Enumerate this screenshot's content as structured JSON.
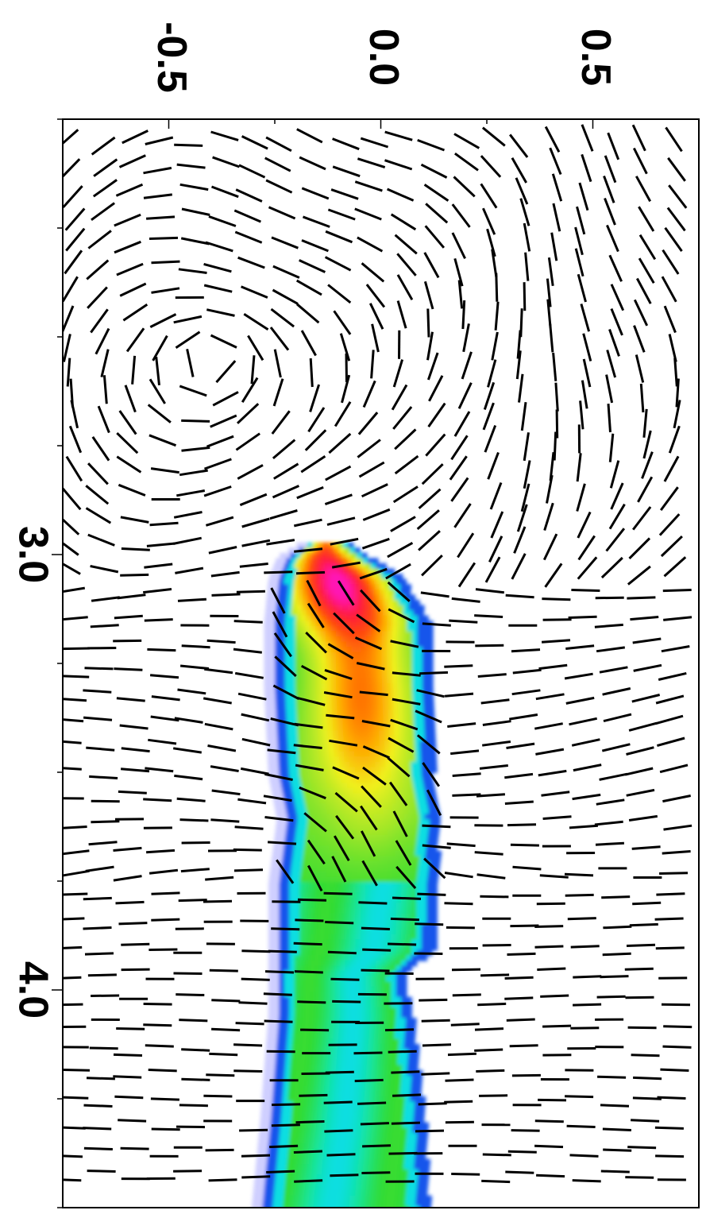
{
  "chart_data": {
    "type": "heatmap",
    "title": "",
    "xlabel": "",
    "ylabel": "",
    "orientation": "rotated-90",
    "axis_along_height": {
      "range": [
        2.0,
        4.5
      ],
      "major_ticks": [
        3.0,
        4.0
      ],
      "major_tick_labels": [
        "3.0",
        "4.0"
      ],
      "minor_ticks": [
        2.0,
        2.25,
        2.5,
        2.75,
        3.0,
        3.25,
        3.5,
        3.75,
        4.0,
        4.25,
        4.5
      ]
    },
    "axis_along_width": {
      "range": [
        -0.75,
        0.75
      ],
      "major_ticks": [
        -0.5,
        0.0,
        0.5
      ],
      "major_tick_labels": [
        "-0.5",
        "0.0",
        "0.5"
      ],
      "minor_ticks": [
        -0.75,
        -0.5,
        -0.25,
        0.0,
        0.25,
        0.5,
        0.75
      ]
    },
    "colormap": [
      "#ffffff",
      "#c8c8ff",
      "#1e32e6",
      "#00dcff",
      "#18e49a",
      "#32dc32",
      "#a0e628",
      "#f0f01e",
      "#ffa500",
      "#ff4b0a",
      "#ff1e3c",
      "#ff14b4"
    ],
    "grid": false,
    "overlay": "field-direction line segments"
  }
}
